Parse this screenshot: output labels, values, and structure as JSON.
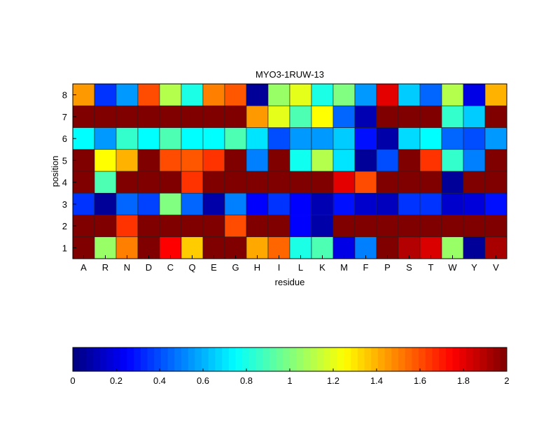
{
  "chart_data": {
    "type": "heatmap",
    "title": "MYO3-1RUW-13",
    "xlabel": "residue",
    "ylabel": "position",
    "x_categories": [
      "A",
      "R",
      "N",
      "D",
      "C",
      "Q",
      "E",
      "G",
      "H",
      "I",
      "L",
      "K",
      "M",
      "F",
      "P",
      "S",
      "T",
      "W",
      "Y",
      "V"
    ],
    "y_categories": [
      "1",
      "2",
      "3",
      "4",
      "5",
      "6",
      "7",
      "8"
    ],
    "colormap": "jet",
    "clim": [
      0,
      2
    ],
    "colorbar_ticks": [
      "0",
      "0.2",
      "0.4",
      "0.6",
      "0.8",
      "1",
      "1.2",
      "1.4",
      "1.6",
      "1.8",
      "2"
    ],
    "colorbar_placement": "bottom",
    "values": [
      [
        2,
        1.05,
        1.5,
        2,
        1.75,
        1.35,
        2,
        2,
        1.42,
        1.55,
        0.8,
        0.9,
        0.2,
        0.5,
        2,
        1.9,
        1.82,
        1.05,
        0.05,
        1.92
      ],
      [
        2,
        2,
        1.65,
        2,
        2,
        2,
        2,
        1.6,
        2,
        2,
        0.25,
        0.08,
        2,
        2,
        2,
        2,
        2,
        2,
        2,
        2
      ],
      [
        0.35,
        0.05,
        0.45,
        0.38,
        1.0,
        0.45,
        0.08,
        0.5,
        0.25,
        0.35,
        0.25,
        0.1,
        0.28,
        0.15,
        0.12,
        0.35,
        0.35,
        0.15,
        0.18,
        0.28
      ],
      [
        2,
        0.9,
        2,
        2,
        2,
        1.65,
        2,
        2,
        2,
        2,
        2,
        2,
        1.8,
        1.6,
        2,
        2,
        2,
        0.05,
        2,
        2
      ],
      [
        2,
        1.25,
        1.4,
        2,
        1.6,
        1.58,
        1.65,
        2,
        0.5,
        2,
        0.78,
        1.1,
        0.7,
        0.05,
        0.4,
        2,
        1.65,
        0.85,
        0.5,
        2
      ],
      [
        0.75,
        0.55,
        0.85,
        0.75,
        0.9,
        0.75,
        0.75,
        0.9,
        0.7,
        0.4,
        0.55,
        0.55,
        0.65,
        0.28,
        0.08,
        0.68,
        0.75,
        0.45,
        0.4,
        0.55
      ],
      [
        2,
        2,
        2,
        2,
        2,
        2,
        2,
        2,
        1.45,
        1.2,
        0.9,
        1.25,
        0.45,
        0.1,
        2,
        2,
        2,
        0.85,
        0.65,
        2
      ],
      [
        1.45,
        0.35,
        0.55,
        1.6,
        1.1,
        0.8,
        1.5,
        1.58,
        0.05,
        1.05,
        1.2,
        0.8,
        1.0,
        0.55,
        1.8,
        0.65,
        0.45,
        1.1,
        0.2,
        1.4
      ]
    ]
  }
}
